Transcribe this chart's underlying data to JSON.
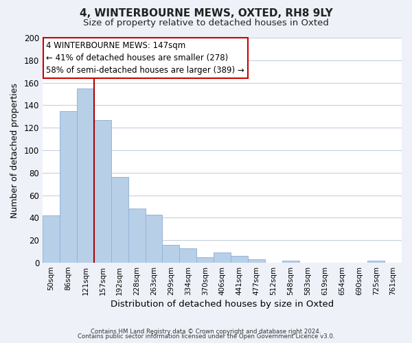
{
  "title": "4, WINTERBOURNE MEWS, OXTED, RH8 9LY",
  "subtitle": "Size of property relative to detached houses in Oxted",
  "xlabel": "Distribution of detached houses by size in Oxted",
  "ylabel": "Number of detached properties",
  "bar_labels": [
    "50sqm",
    "86sqm",
    "121sqm",
    "157sqm",
    "192sqm",
    "228sqm",
    "263sqm",
    "299sqm",
    "334sqm",
    "370sqm",
    "406sqm",
    "441sqm",
    "477sqm",
    "512sqm",
    "548sqm",
    "583sqm",
    "619sqm",
    "654sqm",
    "690sqm",
    "725sqm",
    "761sqm"
  ],
  "bar_values": [
    42,
    135,
    155,
    127,
    76,
    48,
    43,
    16,
    13,
    5,
    9,
    6,
    3,
    0,
    2,
    0,
    0,
    0,
    0,
    2,
    0
  ],
  "bar_color": "#b8cfe8",
  "bar_edge_color": "#95b4d8",
  "marker_color": "#aa0000",
  "ylim": [
    0,
    200
  ],
  "yticks": [
    0,
    20,
    40,
    60,
    80,
    100,
    120,
    140,
    160,
    180,
    200
  ],
  "annotation_title": "4 WINTERBOURNE MEWS: 147sqm",
  "annotation_line1": "← 41% of detached houses are smaller (278)",
  "annotation_line2": "58% of semi-detached houses are larger (389) →",
  "footer1": "Contains HM Land Registry data © Crown copyright and database right 2024.",
  "footer2": "Contains public sector information licensed under the Open Government Licence v3.0.",
  "bg_color": "#eef2f8",
  "plot_bg_color": "#ffffff",
  "grid_color": "#c5d0e0"
}
